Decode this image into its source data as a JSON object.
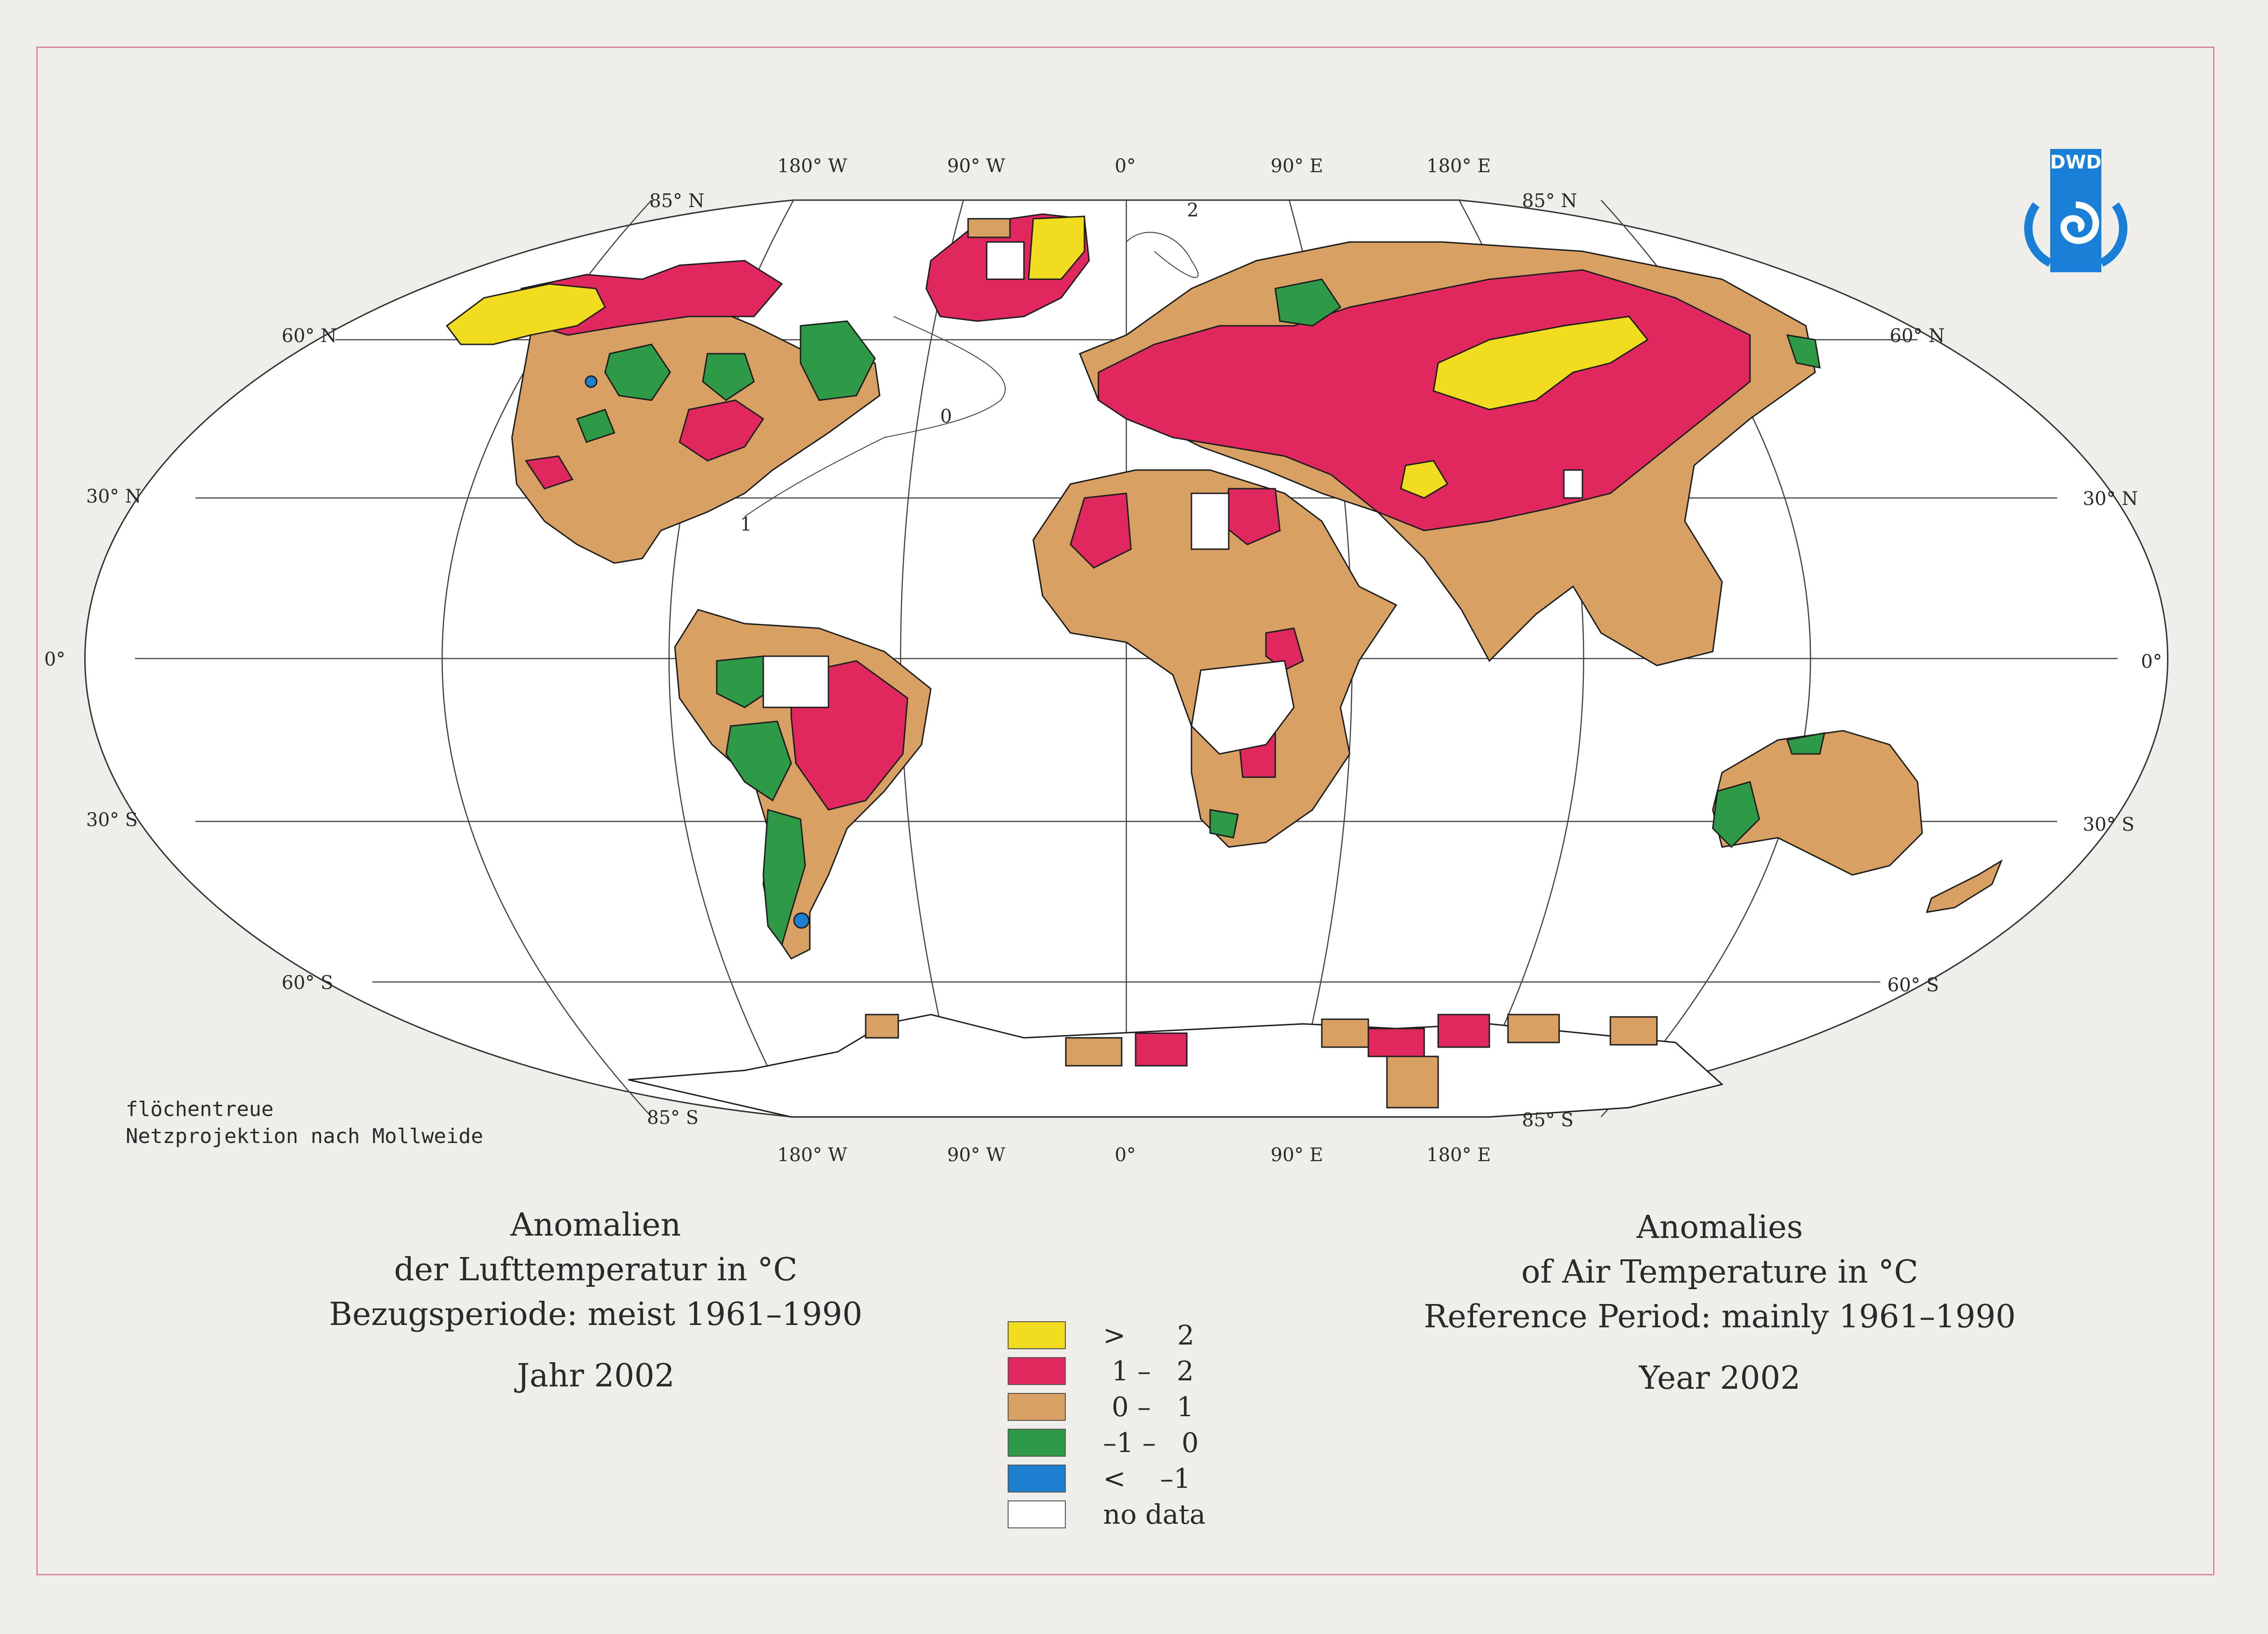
{
  "colors": {
    "gt2": "#f2dc1f",
    "p1to2": "#e0285e",
    "p0to1": "#d9a063",
    "m1to0": "#2e9a47",
    "ltm1": "#1c7fd0",
    "nodata": "#ffffff",
    "frame": "#d98a9a",
    "logo_blue": "#1a7fd6"
  },
  "map": {
    "lon_top": [
      "180° W",
      "90° W",
      "0°",
      "90° E",
      "180° E"
    ],
    "lon_bottom": [
      "180° W",
      "90° W",
      "0°",
      "90° E",
      "180° E"
    ],
    "lat_left": {
      "n85": "85° N",
      "n60": "60° N",
      "n30": "30° N",
      "eq": "0°",
      "s30": "30° S",
      "s60": "60° S",
      "s85": "85° S"
    },
    "lat_right": {
      "n85": "85° N",
      "n60": "60° N",
      "n30": "30° N",
      "eq": "0°",
      "s30": "30° S",
      "s60": "60° S",
      "s85": "85° S"
    },
    "contour_labels": [
      "2",
      "0",
      "1"
    ],
    "projection_note": [
      "flöchentreue",
      "Netzprojektion nach Mollweide"
    ]
  },
  "logo": {
    "text": "DWD",
    "icon": "dwd-logo-icon"
  },
  "title_de": {
    "line1": "Anomalien",
    "line2": "der Lufttemperatur in °C",
    "line3": "Bezugsperiode: meist 1961–1990",
    "year": "Jahr 2002"
  },
  "title_en": {
    "line1": "Anomalies",
    "line2": "of Air Temperature in °C",
    "line3": "Reference Period: mainly 1961–1990",
    "year": "Year 2002"
  },
  "legend": [
    {
      "label": ">      2",
      "color": "#f2dc1f"
    },
    {
      "label": " 1 –   2",
      "color": "#e0285e"
    },
    {
      "label": " 0 –   1",
      "color": "#d9a063"
    },
    {
      "label": "–1 –   0",
      "color": "#2e9a47"
    },
    {
      "label": "<    –1",
      "color": "#1c7fd0"
    },
    {
      "label": "no data",
      "color": "#ffffff"
    }
  ]
}
